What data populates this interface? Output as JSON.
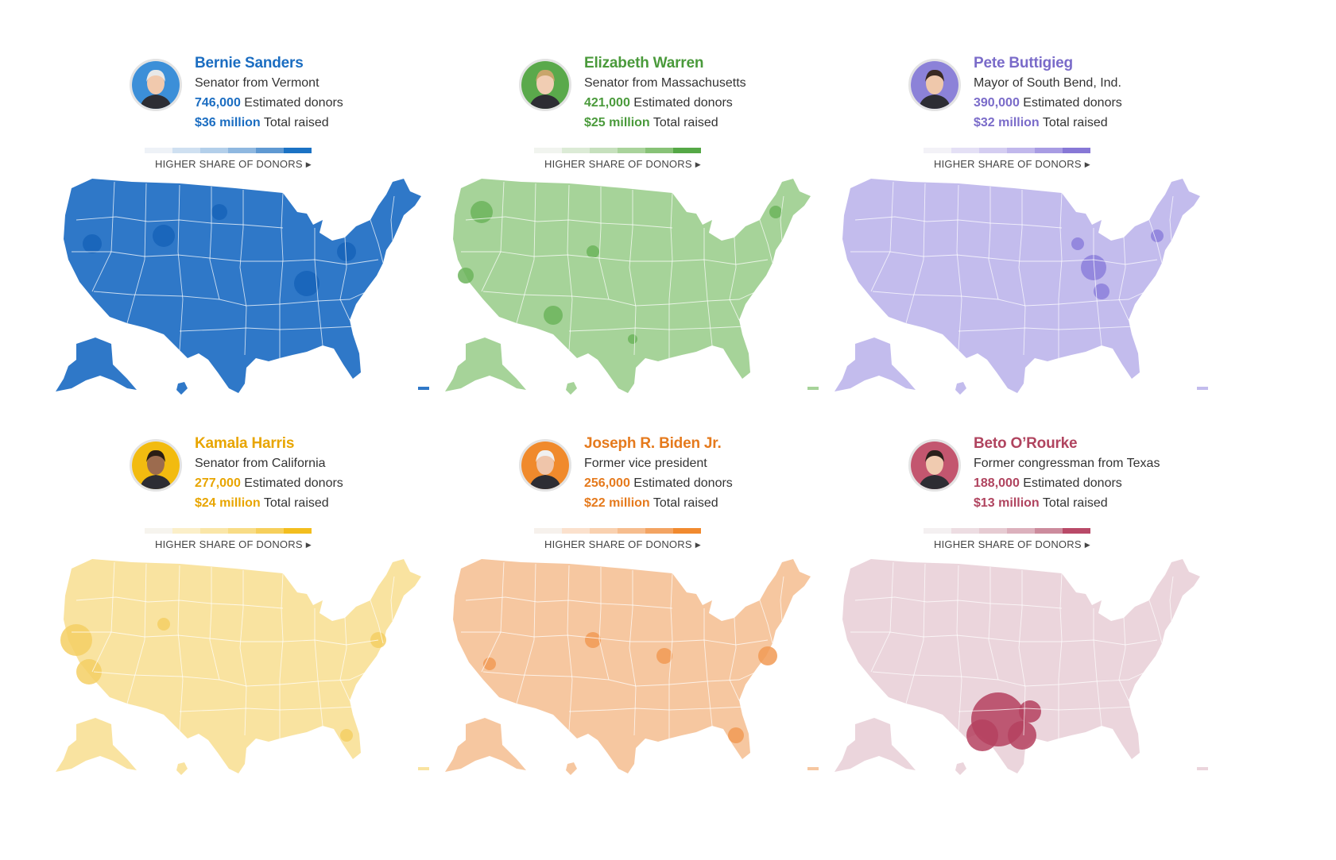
{
  "legend_label": "HIGHER SHARE OF DONORS",
  "candidates": [
    {
      "name": "Bernie Sanders",
      "role": "Senator from Vermont",
      "donors_value": "746,000",
      "donors_label": "Estimated donors",
      "raised_value": "$36 million",
      "raised_label": "Total raised",
      "color": "#1b6dc1",
      "scale": [
        "#eef2f7",
        "#cfe0f1",
        "#b3cfea",
        "#8fb8e0",
        "#5f99d2",
        "#1b72c4"
      ],
      "map_fill": "#2f78c8",
      "hot_fill": "#1663b8",
      "light_fill": "#8ab4df",
      "photo_bg": "#3c8fd8",
      "hair": "#e8e8e8"
    },
    {
      "name": "Elizabeth Warren",
      "role": "Senator from Massachusetts",
      "donors_value": "421,000",
      "donors_label": "Estimated donors",
      "raised_value": "$25 million",
      "raised_label": "Total raised",
      "color": "#4a9a3b",
      "scale": [
        "#f1f4ef",
        "#dcebd6",
        "#c6e0bd",
        "#a9d39b",
        "#88c277",
        "#55a846"
      ],
      "map_fill": "#a6d399",
      "hot_fill": "#6cb45c",
      "light_fill": "#cde7c4",
      "photo_bg": "#5aa94b",
      "hair": "#c9a56b"
    },
    {
      "name": "Pete Buttigieg",
      "role": "Mayor of South Bend, Ind.",
      "donors_value": "390,000",
      "donors_label": "Estimated donors",
      "raised_value": "$32 million",
      "raised_label": "Total raised",
      "color": "#7a6bc9",
      "scale": [
        "#f3f2f7",
        "#e4e0f5",
        "#d4cdf1",
        "#c1b8ec",
        "#a89ce3",
        "#8778d6"
      ],
      "map_fill": "#c3bced",
      "hot_fill": "#8c7fdb",
      "light_fill": "#dedaf5",
      "photo_bg": "#8c82d8",
      "hair": "#3a2a22"
    },
    {
      "name": "Kamala Harris",
      "role": "Senator from California",
      "donors_value": "277,000",
      "donors_label": "Estimated donors",
      "raised_value": "$24 million",
      "raised_label": "Total raised",
      "color": "#e8a500",
      "scale": [
        "#f6f4ee",
        "#fbefc9",
        "#fae6a8",
        "#f8dc86",
        "#f6cf5c",
        "#f3be1e"
      ],
      "map_fill": "#f9e3a0",
      "hot_fill": "#f5cf64",
      "light_fill": "#fbeecb",
      "photo_bg": "#f2bb10",
      "hair": "#2a1d15"
    },
    {
      "name": "Joseph R. Biden Jr.",
      "role": "Former vice president",
      "donors_value": "256,000",
      "donors_label": "Estimated donors",
      "raised_value": "$22 million",
      "raised_label": "Total raised",
      "color": "#e57a1d",
      "scale": [
        "#f6f1ec",
        "#fbe1cd",
        "#f9d1b0",
        "#f6bd8e",
        "#f3a463",
        "#f18a2f"
      ],
      "map_fill": "#f6c7a0",
      "hot_fill": "#f19a55",
      "light_fill": "#fadfc8",
      "photo_bg": "#f08a2c",
      "hair": "#f0f0f0"
    },
    {
      "name": "Beto O’Rourke",
      "role": "Former congressman from Texas",
      "donors_value": "188,000",
      "donors_label": "Estimated donors",
      "raised_value": "$13 million",
      "raised_label": "Total raised",
      "color": "#b0445f",
      "scale": [
        "#f4f0f1",
        "#eddde2",
        "#e6cbd2",
        "#dcb1bd",
        "#cc8b9d",
        "#b94a68"
      ],
      "map_fill": "#ebd5dc",
      "hot_fill": "#b5415f",
      "light_fill": "#f3e5e9",
      "photo_bg": "#c3566f",
      "hair": "#2b211c"
    }
  ]
}
